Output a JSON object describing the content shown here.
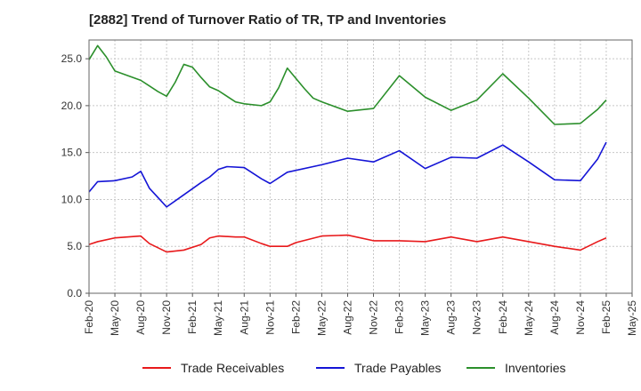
{
  "chart_data": {
    "type": "line",
    "title": "[2882]  Trend of Turnover Ratio of TR, TP and Inventories",
    "xlabel": "",
    "ylabel": "",
    "ylim": [
      0,
      27
    ],
    "yticks": [
      "0.0",
      "5.0",
      "10.0",
      "15.0",
      "20.0",
      "25.0"
    ],
    "ytick_values": [
      0,
      5,
      10,
      15,
      20,
      25
    ],
    "xtick_labels": [
      "Feb-20",
      "May-20",
      "Aug-20",
      "Nov-20",
      "Feb-21",
      "May-21",
      "Aug-21",
      "Nov-21",
      "Feb-22",
      "May-22",
      "Aug-22",
      "Nov-22",
      "Feb-23",
      "May-23",
      "Aug-23",
      "Nov-23",
      "Feb-24",
      "May-24",
      "Aug-24",
      "Nov-24",
      "Feb-25",
      "May-25"
    ],
    "grid": true,
    "legend_position": "bottom",
    "x": [
      "Feb-20",
      "Mar-20",
      "Apr-20",
      "May-20",
      "Jun-20",
      "Jul-20",
      "Aug-20",
      "Sep-20",
      "Oct-20",
      "Nov-20",
      "Dec-20",
      "Jan-21",
      "Feb-21",
      "Mar-21",
      "Apr-21",
      "May-21",
      "Jun-21",
      "Jul-21",
      "Aug-21",
      "Sep-21",
      "Oct-21",
      "Nov-21",
      "Dec-21",
      "Jan-22",
      "Feb-22",
      "Mar-22",
      "Apr-22",
      "May-22",
      "Jun-22",
      "Jul-22",
      "Aug-22",
      "Sep-22",
      "Oct-22",
      "Nov-22",
      "Dec-22",
      "Jan-23",
      "Feb-23",
      "Mar-23",
      "Apr-23",
      "May-23",
      "Jun-23",
      "Jul-23",
      "Aug-23",
      "Sep-23",
      "Oct-23",
      "Nov-23",
      "Dec-23",
      "Jan-24",
      "Feb-24",
      "Mar-24",
      "Apr-24",
      "May-24",
      "Jun-24",
      "Jul-24",
      "Aug-24",
      "Sep-24",
      "Oct-24",
      "Nov-24",
      "Dec-24",
      "Jan-25",
      "Feb-25"
    ],
    "series": [
      {
        "name": "Trade Receivables",
        "color": "#e8191b",
        "points": [
          [
            "Feb-20",
            5.2
          ],
          [
            "Mar-20",
            5.5
          ],
          [
            "May-20",
            5.9
          ],
          [
            "Aug-20",
            6.1
          ],
          [
            "Sep-20",
            5.3
          ],
          [
            "Nov-20",
            4.4
          ],
          [
            "Jan-21",
            4.6
          ],
          [
            "Mar-21",
            5.2
          ],
          [
            "Apr-21",
            5.9
          ],
          [
            "May-21",
            6.1
          ],
          [
            "Jul-21",
            6.0
          ],
          [
            "Aug-21",
            6.0
          ],
          [
            "Oct-21",
            5.3
          ],
          [
            "Nov-21",
            5.0
          ],
          [
            "Jan-22",
            5.0
          ],
          [
            "Feb-22",
            5.4
          ],
          [
            "May-22",
            6.1
          ],
          [
            "Aug-22",
            6.2
          ],
          [
            "Nov-22",
            5.6
          ],
          [
            "Feb-23",
            5.6
          ],
          [
            "May-23",
            5.5
          ],
          [
            "Aug-23",
            6.0
          ],
          [
            "Nov-23",
            5.5
          ],
          [
            "Feb-24",
            6.0
          ],
          [
            "May-24",
            5.5
          ],
          [
            "Aug-24",
            5.0
          ],
          [
            "Nov-24",
            4.6
          ],
          [
            "Jan-25",
            5.5
          ],
          [
            "Feb-25",
            5.9
          ]
        ]
      },
      {
        "name": "Trade Payables",
        "color": "#1414d6",
        "points": [
          [
            "Feb-20",
            10.8
          ],
          [
            "Mar-20",
            11.9
          ],
          [
            "May-20",
            12.0
          ],
          [
            "Jul-20",
            12.4
          ],
          [
            "Aug-20",
            13.0
          ],
          [
            "Sep-20",
            11.2
          ],
          [
            "Oct-20",
            10.2
          ],
          [
            "Nov-20",
            9.2
          ],
          [
            "Jan-21",
            10.5
          ],
          [
            "Mar-21",
            11.8
          ],
          [
            "Apr-21",
            12.4
          ],
          [
            "May-21",
            13.2
          ],
          [
            "Jun-21",
            13.5
          ],
          [
            "Aug-21",
            13.4
          ],
          [
            "Oct-21",
            12.2
          ],
          [
            "Nov-21",
            11.7
          ],
          [
            "Jan-22",
            12.9
          ],
          [
            "May-22",
            13.7
          ],
          [
            "Aug-22",
            14.4
          ],
          [
            "Nov-22",
            14.0
          ],
          [
            "Feb-23",
            15.2
          ],
          [
            "May-23",
            13.3
          ],
          [
            "Aug-23",
            14.5
          ],
          [
            "Nov-23",
            14.4
          ],
          [
            "Feb-24",
            15.8
          ],
          [
            "May-24",
            14.0
          ],
          [
            "Aug-24",
            12.1
          ],
          [
            "Nov-24",
            12.0
          ],
          [
            "Jan-25",
            14.3
          ],
          [
            "Feb-25",
            16.1
          ]
        ]
      },
      {
        "name": "Inventories",
        "color": "#2b8f2b",
        "points": [
          [
            "Feb-20",
            24.9
          ],
          [
            "Mar-20",
            26.4
          ],
          [
            "Apr-20",
            25.2
          ],
          [
            "May-20",
            23.7
          ],
          [
            "Aug-20",
            22.7
          ],
          [
            "Sep-20",
            22.1
          ],
          [
            "Oct-20",
            21.5
          ],
          [
            "Nov-20",
            21.0
          ],
          [
            "Dec-20",
            22.5
          ],
          [
            "Jan-21",
            24.4
          ],
          [
            "Feb-21",
            24.1
          ],
          [
            "Mar-21",
            23.0
          ],
          [
            "Apr-21",
            22.0
          ],
          [
            "May-21",
            21.6
          ],
          [
            "Jul-21",
            20.4
          ],
          [
            "Aug-21",
            20.2
          ],
          [
            "Oct-21",
            20.0
          ],
          [
            "Nov-21",
            20.4
          ],
          [
            "Dec-21",
            21.9
          ],
          [
            "Jan-22",
            24.0
          ],
          [
            "Feb-22",
            22.9
          ],
          [
            "Mar-22",
            21.8
          ],
          [
            "Apr-22",
            20.8
          ],
          [
            "May-22",
            20.4
          ],
          [
            "Aug-22",
            19.4
          ],
          [
            "Nov-22",
            19.7
          ],
          [
            "Feb-23",
            23.2
          ],
          [
            "May-23",
            20.9
          ],
          [
            "Aug-23",
            19.5
          ],
          [
            "Nov-23",
            20.6
          ],
          [
            "Feb-24",
            23.4
          ],
          [
            "May-24",
            20.8
          ],
          [
            "Aug-24",
            18.0
          ],
          [
            "Nov-24",
            18.1
          ],
          [
            "Jan-25",
            19.6
          ],
          [
            "Feb-25",
            20.6
          ]
        ]
      }
    ]
  }
}
